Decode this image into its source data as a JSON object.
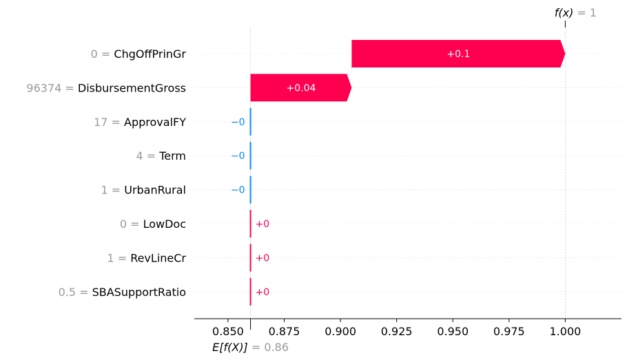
{
  "chart_data": {
    "type": "waterfall",
    "base_value": 0.86,
    "output_value": 1.0,
    "base_label_prefix": "E[f(X)]",
    "base_label_value": "= 0.86",
    "output_label_prefix": "f(x)",
    "output_label_value": "= 1",
    "xlim": [
      0.835,
      1.025
    ],
    "x_ticks": [
      0.85,
      0.875,
      0.9,
      0.925,
      0.95,
      0.975,
      1.0
    ],
    "x_tick_labels": [
      "0.850",
      "0.875",
      "0.900",
      "0.925",
      "0.950",
      "0.975",
      "1.000"
    ],
    "features": [
      {
        "value_text": "0 =",
        "name": "ChgOffPrinGr",
        "start": 0.905,
        "end": 1.0,
        "label": "+0.1",
        "sign": "positive"
      },
      {
        "value_text": "96374 =",
        "name": "DisbursementGross",
        "start": 0.86,
        "end": 0.905,
        "label": "+0.04",
        "sign": "positive"
      },
      {
        "value_text": "17 =",
        "name": "ApprovalFY",
        "start": 0.86,
        "end": 0.8598,
        "label": "−0",
        "sign": "negative"
      },
      {
        "value_text": "4 =",
        "name": "Term",
        "start": 0.86,
        "end": 0.8598,
        "label": "−0",
        "sign": "negative"
      },
      {
        "value_text": "1 =",
        "name": "UrbanRural",
        "start": 0.86,
        "end": 0.8598,
        "label": "−0",
        "sign": "negative"
      },
      {
        "value_text": "0 =",
        "name": "LowDoc",
        "start": 0.86,
        "end": 0.8602,
        "label": "+0",
        "sign": "positive"
      },
      {
        "value_text": "1 =",
        "name": "RevLineCr",
        "start": 0.86,
        "end": 0.8602,
        "label": "+0",
        "sign": "positive"
      },
      {
        "value_text": "0.5 =",
        "name": "SBASupportRatio",
        "start": 0.86,
        "end": 0.8602,
        "label": "+0",
        "sign": "positive"
      }
    ],
    "colors": {
      "positive": "#ff0051",
      "negative": "#008bfb",
      "value_gray": "#999999",
      "grid": "#cccccc"
    }
  }
}
